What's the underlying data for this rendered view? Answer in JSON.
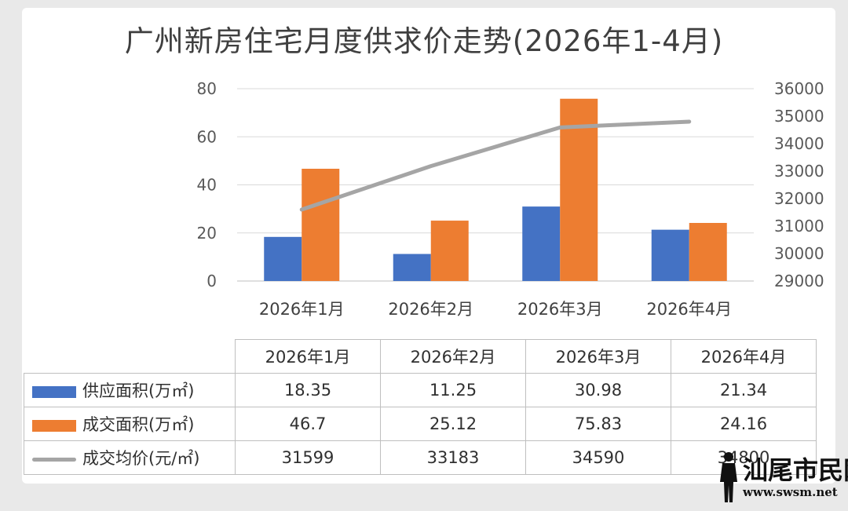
{
  "chart_data": {
    "type": "bar",
    "title": "广州新房住宅月度供求价走势(2026年1-4月)",
    "categories": [
      "2026年1月",
      "2026年2月",
      "2026年3月",
      "2026年4月"
    ],
    "series": [
      {
        "name": "供应面积(万㎡)",
        "kind": "bar",
        "axis": "left",
        "color": "#4472c4",
        "values": [
          18.35,
          11.25,
          30.98,
          21.34
        ]
      },
      {
        "name": "成交面积(万㎡)",
        "kind": "bar",
        "axis": "left",
        "color": "#ed7d31",
        "values": [
          46.7,
          25.12,
          75.83,
          24.16
        ]
      },
      {
        "name": "成交均价(元/㎡)",
        "kind": "line",
        "axis": "right",
        "color": "#a5a5a5",
        "values": [
          31599,
          33183,
          34590,
          34800
        ]
      }
    ],
    "ylim": [
      0,
      80
    ],
    "yticks": [
      0,
      20,
      40,
      60,
      80
    ],
    "y2lim": [
      29000,
      36000
    ],
    "y2ticks": [
      29000,
      30000,
      31000,
      32000,
      33000,
      34000,
      35000,
      36000
    ],
    "grid": true,
    "legend": "data-table below chart"
  },
  "table": {
    "headers": [
      "2026年1月",
      "2026年2月",
      "2026年3月",
      "2026年4月"
    ],
    "rows": [
      {
        "label": "供应面积(万㎡)",
        "values": [
          "18.35",
          "11.25",
          "30.98",
          "21.34"
        ]
      },
      {
        "label": "成交面积(万㎡)",
        "values": [
          "46.7",
          "25.12",
          "75.83",
          "24.16"
        ]
      },
      {
        "label": "成交均价(元/㎡)",
        "values": [
          "31599",
          "33183",
          "34590",
          "34800"
        ]
      }
    ]
  },
  "watermark": {
    "text": "汕尾市民网",
    "url": "www.swsm.net"
  }
}
